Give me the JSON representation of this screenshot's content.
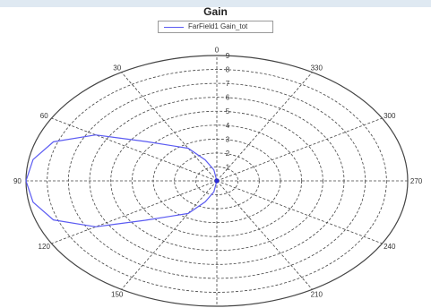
{
  "chart_data": {
    "type": "polar",
    "title": "Gain",
    "legend": {
      "position": "top",
      "entries": [
        "FarField1 Gain_tot"
      ]
    },
    "angular_axis": {
      "ticks": [
        0,
        30,
        60,
        90,
        120,
        150,
        180,
        210,
        240,
        270,
        300,
        330
      ],
      "zero_at": "top",
      "direction": "counterclockwise"
    },
    "radial_axis": {
      "range": [
        0,
        9
      ],
      "ticks": [
        1,
        2,
        3,
        4,
        5,
        6,
        7,
        8,
        9
      ]
    },
    "grid": true,
    "series": [
      {
        "name": "FarField1 Gain_tot",
        "color": "#5b5bf2",
        "theta_deg": [
          0,
          10,
          20,
          30,
          40,
          50,
          60,
          70,
          80,
          90,
          100,
          110,
          120,
          130,
          140,
          150,
          160,
          170,
          180,
          190,
          200,
          210,
          220,
          230,
          240,
          250,
          260,
          270,
          280,
          290,
          300,
          310,
          320,
          330,
          340,
          350
        ],
        "r": [
          0,
          0.8,
          1.6,
          2.7,
          3.3,
          4.4,
          6.6,
          8.2,
          8.8,
          9.0,
          8.8,
          8.2,
          6.6,
          4.4,
          3.3,
          2.7,
          1.6,
          0.8,
          0,
          0,
          0,
          0,
          0,
          0,
          0,
          0,
          0,
          0,
          0,
          0,
          0,
          0,
          0,
          0,
          0,
          0
        ]
      }
    ]
  }
}
